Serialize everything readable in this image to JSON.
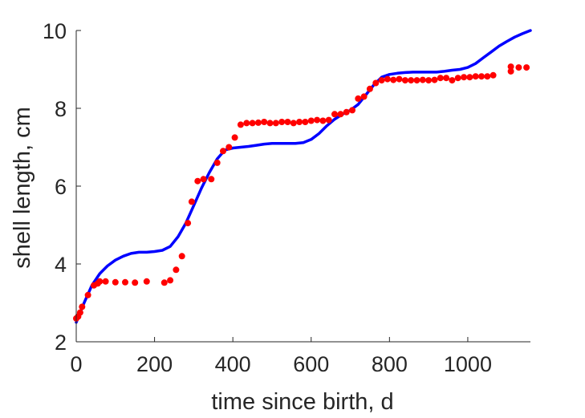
{
  "chart_data": {
    "type": "scatter",
    "xlabel": "time since birth, d",
    "ylabel": "shell length, cm",
    "xlim": [
      0,
      1160
    ],
    "ylim": [
      2,
      10
    ],
    "xticks": [
      0,
      200,
      400,
      600,
      800,
      1000
    ],
    "yticks": [
      2,
      4,
      6,
      8,
      10
    ],
    "xtick_labels": [
      "0",
      "200",
      "400",
      "600",
      "800",
      "1000"
    ],
    "ytick_labels": [
      "2",
      "4",
      "6",
      "8",
      "10"
    ],
    "grid": false,
    "series": [
      {
        "kind": "scatter",
        "color": "#ff0000",
        "points": [
          [
            0,
            2.6
          ],
          [
            5,
            2.65
          ],
          [
            10,
            2.75
          ],
          [
            15,
            2.9
          ],
          [
            30,
            3.2
          ],
          [
            45,
            3.45
          ],
          [
            55,
            3.5
          ],
          [
            60,
            3.55
          ],
          [
            75,
            3.55
          ],
          [
            100,
            3.53
          ],
          [
            125,
            3.53
          ],
          [
            150,
            3.52
          ],
          [
            180,
            3.55
          ],
          [
            225,
            3.52
          ],
          [
            240,
            3.58
          ],
          [
            255,
            3.85
          ],
          [
            270,
            4.2
          ],
          [
            285,
            5.05
          ],
          [
            295,
            5.6
          ],
          [
            310,
            6.13
          ],
          [
            325,
            6.18
          ],
          [
            345,
            6.18
          ],
          [
            360,
            6.6
          ],
          [
            375,
            6.9
          ],
          [
            390,
            7.0
          ],
          [
            405,
            7.25
          ],
          [
            420,
            7.58
          ],
          [
            435,
            7.62
          ],
          [
            450,
            7.62
          ],
          [
            465,
            7.63
          ],
          [
            480,
            7.65
          ],
          [
            495,
            7.62
          ],
          [
            510,
            7.62
          ],
          [
            525,
            7.65
          ],
          [
            540,
            7.65
          ],
          [
            555,
            7.62
          ],
          [
            570,
            7.65
          ],
          [
            585,
            7.65
          ],
          [
            600,
            7.68
          ],
          [
            615,
            7.7
          ],
          [
            630,
            7.68
          ],
          [
            645,
            7.7
          ],
          [
            660,
            7.85
          ],
          [
            675,
            7.85
          ],
          [
            690,
            7.9
          ],
          [
            705,
            7.95
          ],
          [
            720,
            8.25
          ],
          [
            735,
            8.3
          ],
          [
            750,
            8.5
          ],
          [
            765,
            8.65
          ],
          [
            780,
            8.72
          ],
          [
            795,
            8.75
          ],
          [
            810,
            8.73
          ],
          [
            825,
            8.75
          ],
          [
            840,
            8.72
          ],
          [
            855,
            8.72
          ],
          [
            870,
            8.72
          ],
          [
            885,
            8.73
          ],
          [
            900,
            8.72
          ],
          [
            915,
            8.73
          ],
          [
            930,
            8.78
          ],
          [
            945,
            8.78
          ],
          [
            960,
            8.72
          ],
          [
            975,
            8.78
          ],
          [
            990,
            8.8
          ],
          [
            1005,
            8.8
          ],
          [
            1020,
            8.82
          ],
          [
            1035,
            8.82
          ],
          [
            1050,
            8.82
          ],
          [
            1065,
            8.85
          ],
          [
            1110,
            8.95
          ],
          [
            1110,
            9.07
          ],
          [
            1130,
            9.05
          ],
          [
            1150,
            9.05
          ]
        ]
      },
      {
        "kind": "line",
        "color": "#0000ff",
        "points": [
          [
            0,
            2.5
          ],
          [
            20,
            3.0
          ],
          [
            40,
            3.45
          ],
          [
            60,
            3.75
          ],
          [
            80,
            3.95
          ],
          [
            100,
            4.1
          ],
          [
            120,
            4.2
          ],
          [
            140,
            4.27
          ],
          [
            160,
            4.3
          ],
          [
            180,
            4.3
          ],
          [
            200,
            4.32
          ],
          [
            220,
            4.35
          ],
          [
            240,
            4.45
          ],
          [
            260,
            4.7
          ],
          [
            280,
            5.05
          ],
          [
            300,
            5.5
          ],
          [
            320,
            5.95
          ],
          [
            340,
            6.35
          ],
          [
            360,
            6.7
          ],
          [
            380,
            6.93
          ],
          [
            400,
            6.98
          ],
          [
            420,
            7.0
          ],
          [
            440,
            7.02
          ],
          [
            460,
            7.05
          ],
          [
            480,
            7.08
          ],
          [
            500,
            7.1
          ],
          [
            520,
            7.1
          ],
          [
            540,
            7.1
          ],
          [
            560,
            7.1
          ],
          [
            580,
            7.12
          ],
          [
            600,
            7.2
          ],
          [
            620,
            7.35
          ],
          [
            640,
            7.55
          ],
          [
            660,
            7.72
          ],
          [
            680,
            7.85
          ],
          [
            700,
            7.95
          ],
          [
            720,
            8.1
          ],
          [
            740,
            8.35
          ],
          [
            760,
            8.6
          ],
          [
            780,
            8.8
          ],
          [
            800,
            8.87
          ],
          [
            820,
            8.9
          ],
          [
            840,
            8.92
          ],
          [
            860,
            8.93
          ],
          [
            880,
            8.93
          ],
          [
            900,
            8.93
          ],
          [
            920,
            8.93
          ],
          [
            940,
            8.95
          ],
          [
            960,
            8.98
          ],
          [
            980,
            9.0
          ],
          [
            1000,
            9.05
          ],
          [
            1020,
            9.15
          ],
          [
            1040,
            9.3
          ],
          [
            1060,
            9.45
          ],
          [
            1080,
            9.6
          ],
          [
            1100,
            9.72
          ],
          [
            1120,
            9.83
          ],
          [
            1140,
            9.92
          ],
          [
            1160,
            10.0
          ]
        ]
      }
    ]
  }
}
